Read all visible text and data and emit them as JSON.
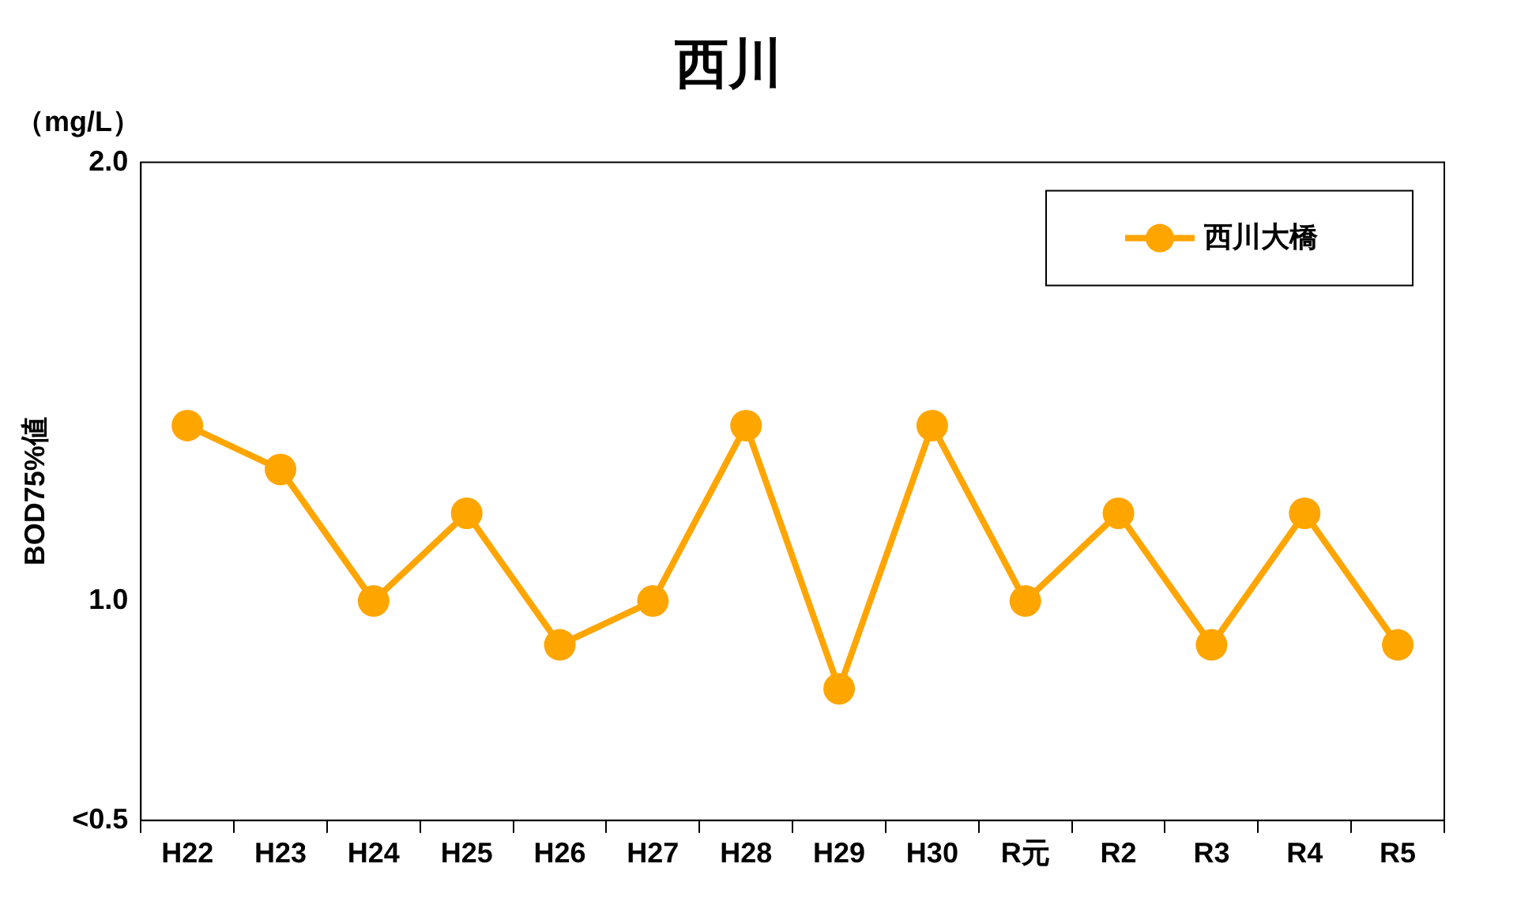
{
  "chart_data": {
    "type": "line",
    "title": "西川",
    "ylabel": "BOD75%値",
    "annotations": [
      "（mg/L）"
    ],
    "categories": [
      "H22",
      "H23",
      "H24",
      "H25",
      "H26",
      "H27",
      "H28",
      "H29",
      "H30",
      "R元",
      "R2",
      "R3",
      "R4",
      "R5"
    ],
    "series": [
      {
        "name": "西川大橋",
        "color": "#ffa500",
        "values": [
          1.4,
          1.3,
          1.0,
          1.2,
          0.9,
          1.0,
          1.4,
          0.8,
          1.4,
          1.0,
          1.2,
          0.9,
          1.2,
          0.9
        ]
      }
    ],
    "ylim": [
      0.5,
      2.0
    ],
    "yticks": [
      {
        "value": 0.5,
        "label": "<0.5"
      },
      {
        "value": 1,
        "label": "1.0"
      },
      {
        "value": 2,
        "label": "2.0"
      }
    ],
    "grid": false,
    "legend": "top right",
    "marker": "circle",
    "line_style": "solid"
  }
}
